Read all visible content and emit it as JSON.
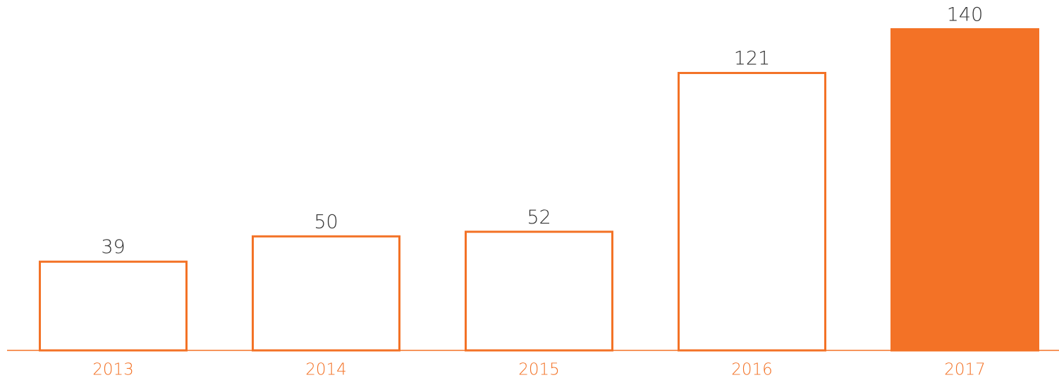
{
  "chart_data": {
    "type": "bar",
    "categories": [
      "2013",
      "2014",
      "2015",
      "2016",
      "2017"
    ],
    "values": [
      39,
      50,
      52,
      121,
      140
    ],
    "color": "#f37226",
    "fill_colors": [
      "#ffffff",
      "#ffffff",
      "#ffffff",
      "#ffffff",
      "#f37226"
    ]
  }
}
